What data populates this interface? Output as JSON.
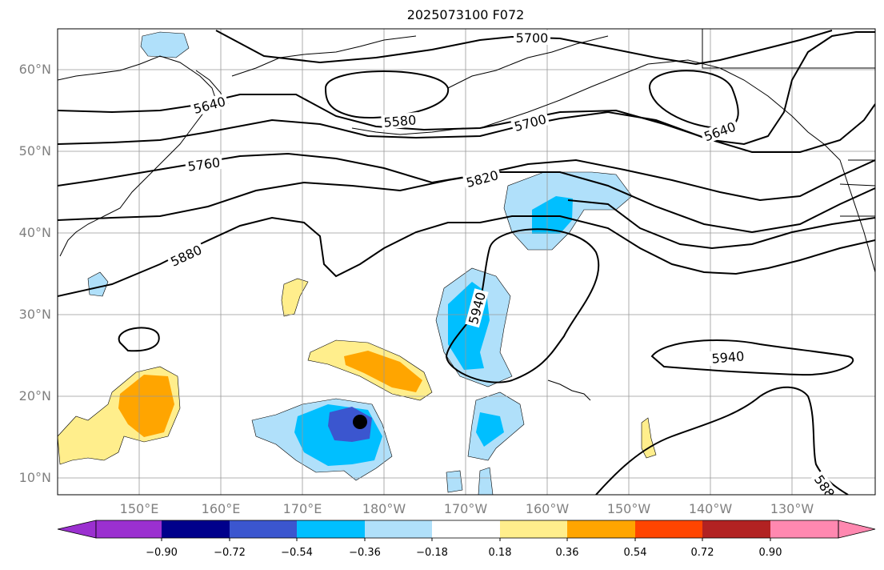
{
  "title": "2025073100 F072",
  "map": {
    "projection": "equidistant cylindrical",
    "lon_range": [
      "140°E",
      "120°W"
    ],
    "lat_range": [
      "8°N",
      "65°N"
    ],
    "grid": true,
    "lat_labels": [
      "60°N",
      "50°N",
      "40°N",
      "30°N",
      "20°N",
      "10°N"
    ],
    "lon_labels": [
      "150°E",
      "160°E",
      "170°E",
      "180°W",
      "170°W",
      "160°W",
      "150°W",
      "140°W",
      "130°W"
    ],
    "contour_field": "500 hPa geopotential height",
    "contour_labels": [
      "5700",
      "5640",
      "5580",
      "5700",
      "5640",
      "5760",
      "5820",
      "5880",
      "5940",
      "5940",
      "588"
    ],
    "contour_levels": [
      5580,
      5640,
      5700,
      5760,
      5820,
      5880,
      5940
    ],
    "shaded_field_colors": {
      "negative_strong": "#3b56cf",
      "negative_mid": "#00bfff",
      "negative_weak": "#b0e0fa",
      "positive_weak": "#ffee8c",
      "positive_mid": "#ffa500"
    },
    "marker": {
      "name": "storm-center-marker",
      "color": "#000000"
    }
  },
  "colorbar": {
    "ticks": [
      "−0.90",
      "−0.72",
      "−0.54",
      "−0.36",
      "−0.18",
      "0.18",
      "0.36",
      "0.54",
      "0.72",
      "0.90"
    ],
    "colors": [
      "#9b30d0",
      "#00008b",
      "#3b56cf",
      "#00bfff",
      "#b0e0fa",
      "#ffffff",
      "#ffee8c",
      "#ffa500",
      "#ff4500",
      "#b22222",
      "#ff88b0"
    ]
  }
}
